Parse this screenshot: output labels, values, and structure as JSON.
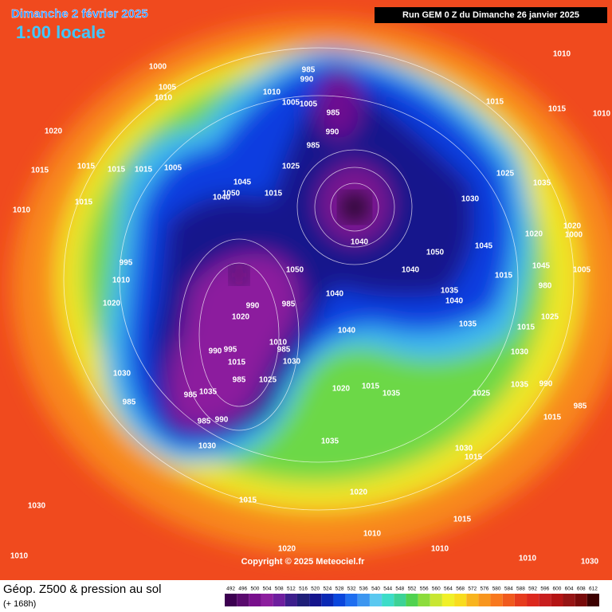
{
  "header": {
    "title": "Dimanche 2 février 2025",
    "subtitle": "1:00 locale",
    "run": "Run GEM 0 Z du Dimanche 26 janvier 2025"
  },
  "copyright": "Copyright © 2025 Meteociel.fr",
  "footer": {
    "title": "Géop. Z500 & pression au sol",
    "lead": "(+ 168h)"
  },
  "isobar_labels": [
    1010,
    1000,
    1005,
    1010,
    1020,
    1010,
    1005,
    1005,
    985,
    990,
    985,
    990,
    985,
    1015,
    1015,
    1010,
    1015,
    1015,
    1015,
    1015,
    1005,
    1010,
    1015,
    1045,
    1050,
    1040,
    1015,
    1025,
    1025,
    1035,
    1030,
    1040,
    1020,
    1020,
    1000,
    995,
    1050,
    1045,
    1050,
    1040,
    1045,
    1015,
    1005,
    1010,
    1020,
    1040,
    1035,
    1040,
    980,
    990,
    985,
    1020,
    1035,
    1025,
    1040,
    1015,
    1010,
    985,
    990,
    995,
    1015,
    1030,
    1030,
    1020,
    1015,
    1035,
    1030,
    1035,
    990,
    985,
    1025,
    985,
    985,
    1035,
    1025,
    1015,
    985,
    985,
    990,
    1030,
    1035,
    1030,
    1015,
    1030,
    1015,
    1020,
    1015,
    1010,
    1010,
    1030,
    1020,
    1010,
    1010
  ],
  "legend": {
    "levels": [
      492,
      496,
      500,
      504,
      508,
      512,
      516,
      520,
      524,
      528,
      532,
      536,
      540,
      544,
      548,
      552,
      556,
      560,
      564,
      568,
      572,
      576,
      580,
      584,
      588,
      592,
      596,
      600,
      604,
      608,
      612
    ],
    "colors": [
      "#3c0050",
      "#5a0a6e",
      "#780f8c",
      "#8c1e9e",
      "#6e1e9e",
      "#3c1e8c",
      "#1e1e78",
      "#14148c",
      "#0a28b4",
      "#0a46dc",
      "#1e6ef0",
      "#3c96f0",
      "#5ac8f0",
      "#3cdcc8",
      "#3cd296",
      "#50d250",
      "#8cdc3c",
      "#c8e632",
      "#f0f028",
      "#f8dc1e",
      "#f8b41e",
      "#f8961e",
      "#f8781e",
      "#f05a1e",
      "#e63c1e",
      "#dc281e",
      "#c81e1e",
      "#b41414",
      "#961414",
      "#780a0a",
      "#3c0000"
    ]
  }
}
